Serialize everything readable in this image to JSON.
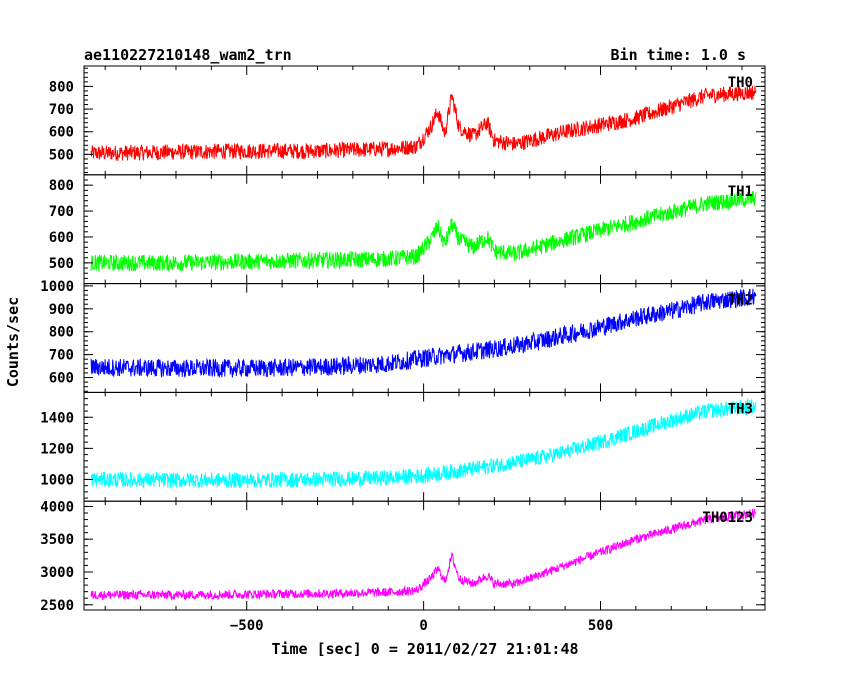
{
  "header": {
    "title": "ae110227210148_wam2_trn",
    "bin_time": "Bin time: 1.0 s"
  },
  "chart_data": {
    "type": "line",
    "xlabel": "Time [sec] 0 = 2011/02/27 21:01:48",
    "ylabel": "Counts/sec",
    "xlim": [
      -960,
      965
    ],
    "x_ticks": [
      -500,
      0,
      500
    ],
    "x_tick_labels": [
      "−500",
      "0",
      "500"
    ],
    "grid": false,
    "panels": [
      {
        "name": "TH0",
        "color": "#ff0000",
        "ylim": [
          410,
          890
        ],
        "y_ticks": [
          500,
          600,
          700,
          800
        ],
        "x": [
          -940,
          -700,
          -500,
          -300,
          -100,
          -20,
          20,
          40,
          60,
          80,
          100,
          140,
          180,
          200,
          260,
          400,
          600,
          800,
          940
        ],
        "y": [
          505,
          510,
          515,
          515,
          525,
          535,
          620,
          690,
          590,
          760,
          620,
          580,
          640,
          560,
          545,
          600,
          660,
          760,
          775
        ],
        "noise": 35
      },
      {
        "name": "TH1",
        "color": "#00ff00",
        "ylim": [
          420,
          840
        ],
        "y_ticks": [
          500,
          600,
          700,
          800
        ],
        "x": [
          -940,
          -700,
          -500,
          -300,
          -100,
          -20,
          20,
          40,
          60,
          80,
          100,
          140,
          180,
          200,
          260,
          400,
          600,
          800,
          940
        ],
        "y": [
          500,
          500,
          505,
          510,
          515,
          525,
          590,
          640,
          570,
          650,
          590,
          560,
          600,
          545,
          535,
          590,
          660,
          730,
          750
        ],
        "noise": 32
      },
      {
        "name": "TH2",
        "color": "#0000ff",
        "ylim": [
          535,
          1010
        ],
        "y_ticks": [
          600,
          700,
          800,
          900,
          1000
        ],
        "x": [
          -940,
          -700,
          -500,
          -300,
          -100,
          0,
          100,
          200,
          300,
          400,
          500,
          600,
          700,
          800,
          940
        ],
        "y": [
          645,
          640,
          640,
          645,
          660,
          685,
          705,
          725,
          750,
          785,
          820,
          860,
          890,
          930,
          955
        ],
        "noise": 40
      },
      {
        "name": "TH3",
        "color": "#00ffff",
        "ylim": [
          860,
          1560
        ],
        "y_ticks": [
          1000,
          1200,
          1400
        ],
        "x": [
          -940,
          -700,
          -500,
          -300,
          -100,
          0,
          100,
          200,
          300,
          400,
          500,
          600,
          700,
          800,
          940
        ],
        "y": [
          1000,
          995,
          995,
          1000,
          1010,
          1025,
          1055,
          1090,
          1125,
          1175,
          1240,
          1310,
          1380,
          1440,
          1470
        ],
        "noise": 50
      },
      {
        "name": "TH0123",
        "color": "#ff00ff",
        "ylim": [
          2420,
          4080
        ],
        "y_ticks": [
          2500,
          3000,
          3500,
          4000
        ],
        "x": [
          -940,
          -700,
          -500,
          -300,
          -100,
          -20,
          20,
          40,
          60,
          80,
          100,
          140,
          180,
          200,
          260,
          400,
          600,
          800,
          940
        ],
        "y": [
          2650,
          2650,
          2660,
          2670,
          2690,
          2720,
          2900,
          3050,
          2850,
          3250,
          2900,
          2820,
          2950,
          2820,
          2820,
          3100,
          3500,
          3800,
          3900
        ],
        "noise": 70
      }
    ]
  }
}
